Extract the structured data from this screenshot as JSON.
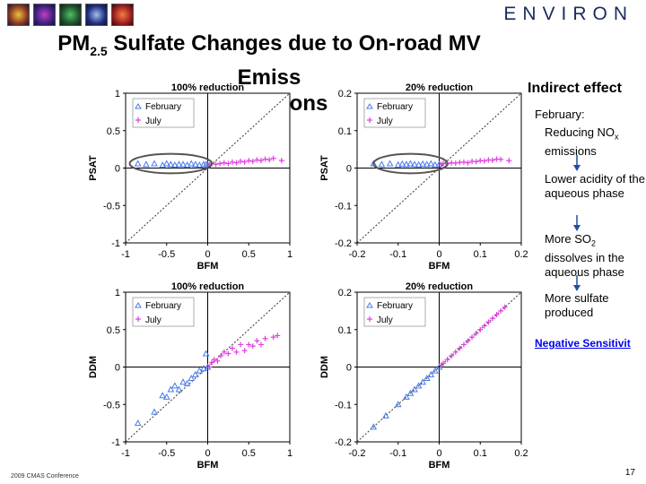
{
  "header": {
    "brand": "ENVIRON",
    "title_main": "PM",
    "title_sub": "2.5",
    "title_rest": " Sulfate Changes due to On-road MV Emiss",
    "title_line2": "Reductions"
  },
  "sidebar": {
    "heading": "Indirect effect",
    "month": "February:",
    "steps": [
      "Reducing NO",
      "x",
      " emissions",
      "Lower acidity of the aqueous phase",
      "More SO",
      "2",
      " dissolves in the aqueous phase",
      "More sulfate produced"
    ],
    "link": "Negative Sensitivit"
  },
  "footer": {
    "left": "2009 CMAS Conference",
    "page": "17"
  },
  "colors": {
    "february": "#4a7be8",
    "july": "#e040e0",
    "ellipse": "#555555"
  },
  "chart_data": [
    {
      "id": "psat-100",
      "type": "scatter",
      "title": "100% reduction",
      "xlabel": "BFM",
      "ylabel": "PSAT",
      "xlim": [
        -1,
        1
      ],
      "ylim": [
        -1,
        1
      ],
      "xticks": [
        -1,
        -0.5,
        0,
        0.5,
        1
      ],
      "yticks": [
        -1,
        -0.5,
        0,
        0.5,
        1
      ],
      "xticklabels": [
        "-1",
        "-0.5",
        "0",
        "0.5",
        "1"
      ],
      "yticklabels": [
        "-1",
        "-0.5",
        "0",
        "0.5",
        "1"
      ],
      "legend": [
        "February",
        "July"
      ],
      "series": [
        {
          "name": "February",
          "marker": "triangle",
          "x": [
            -0.85,
            -0.75,
            -0.65,
            -0.55,
            -0.5,
            -0.45,
            -0.4,
            -0.35,
            -0.3,
            -0.25,
            -0.2,
            -0.15,
            -0.1,
            -0.05,
            -0.02,
            0.0
          ],
          "y": [
            0.06,
            0.05,
            0.06,
            0.04,
            0.06,
            0.05,
            0.04,
            0.05,
            0.05,
            0.04,
            0.06,
            0.05,
            0.04,
            0.05,
            0.05,
            0.04
          ]
        },
        {
          "name": "July",
          "marker": "plus",
          "x": [
            0.02,
            0.05,
            0.1,
            0.15,
            0.2,
            0.25,
            0.3,
            0.35,
            0.4,
            0.45,
            0.5,
            0.55,
            0.6,
            0.65,
            0.7,
            0.75,
            0.8,
            0.9
          ],
          "y": [
            0.04,
            0.06,
            0.05,
            0.06,
            0.07,
            0.06,
            0.08,
            0.07,
            0.09,
            0.08,
            0.1,
            0.09,
            0.11,
            0.1,
            0.12,
            0.11,
            0.13,
            0.1
          ]
        }
      ],
      "ellipse": {
        "cx": -0.45,
        "cy": 0.06,
        "rx": 0.5,
        "ry": 0.13
      }
    },
    {
      "id": "psat-20",
      "type": "scatter",
      "title": "20% reduction",
      "xlabel": "BFM",
      "ylabel": "PSAT",
      "xlim": [
        -0.2,
        0.2
      ],
      "ylim": [
        -0.2,
        0.2
      ],
      "xticks": [
        -0.2,
        -0.1,
        0,
        0.1,
        0.2
      ],
      "yticks": [
        -0.2,
        -0.1,
        0,
        0.1,
        0.2
      ],
      "xticklabels": [
        "-0.2",
        "-0.1",
        "0",
        "0.1",
        "0.2"
      ],
      "yticklabels": [
        "-0.2",
        "-0.1",
        "0",
        "0.1",
        "0.2"
      ],
      "legend": [
        "February",
        "July"
      ],
      "series": [
        {
          "name": "February",
          "marker": "triangle",
          "x": [
            -0.16,
            -0.14,
            -0.12,
            -0.1,
            -0.09,
            -0.08,
            -0.07,
            -0.06,
            -0.05,
            -0.04,
            -0.03,
            -0.02,
            -0.01,
            0.0
          ],
          "y": [
            0.012,
            0.01,
            0.012,
            0.009,
            0.011,
            0.01,
            0.012,
            0.01,
            0.009,
            0.011,
            0.01,
            0.012,
            0.009,
            0.01
          ]
        },
        {
          "name": "July",
          "marker": "plus",
          "x": [
            0.005,
            0.01,
            0.02,
            0.03,
            0.04,
            0.05,
            0.06,
            0.07,
            0.08,
            0.09,
            0.1,
            0.11,
            0.12,
            0.13,
            0.14,
            0.15,
            0.17
          ],
          "y": [
            0.01,
            0.012,
            0.011,
            0.014,
            0.013,
            0.015,
            0.016,
            0.014,
            0.018,
            0.017,
            0.02,
            0.019,
            0.022,
            0.021,
            0.024,
            0.023,
            0.02
          ]
        }
      ],
      "ellipse": {
        "cx": -0.07,
        "cy": 0.012,
        "rx": 0.09,
        "ry": 0.026
      }
    },
    {
      "id": "ddm-100",
      "type": "scatter",
      "title": "100% reduction",
      "xlabel": "BFM",
      "ylabel": "DDM",
      "xlim": [
        -1,
        1
      ],
      "ylim": [
        -1,
        1
      ],
      "xticks": [
        -1,
        -0.5,
        0,
        0.5,
        1
      ],
      "yticks": [
        -1,
        -0.5,
        0,
        0.5,
        1
      ],
      "xticklabels": [
        "-1",
        "-0.5",
        "0",
        "0.5",
        "1"
      ],
      "yticklabels": [
        "-1",
        "-0.5",
        "0",
        "0.5",
        "1"
      ],
      "legend": [
        "February",
        "July"
      ],
      "series": [
        {
          "name": "February",
          "marker": "triangle",
          "x": [
            -0.85,
            -0.65,
            -0.55,
            -0.5,
            -0.45,
            -0.4,
            -0.35,
            -0.3,
            -0.25,
            -0.2,
            -0.15,
            -0.1,
            -0.05,
            0.0,
            -0.02
          ],
          "y": [
            -0.75,
            -0.6,
            -0.38,
            -0.4,
            -0.3,
            -0.25,
            -0.3,
            -0.2,
            -0.22,
            -0.15,
            -0.1,
            -0.05,
            -0.02,
            0.0,
            0.18
          ]
        },
        {
          "name": "July",
          "marker": "plus",
          "x": [
            0.02,
            0.05,
            0.08,
            0.12,
            0.16,
            0.2,
            0.25,
            0.3,
            0.35,
            0.4,
            0.45,
            0.5,
            0.55,
            0.6,
            0.65,
            0.7,
            0.8,
            0.85
          ],
          "y": [
            0.0,
            0.06,
            0.1,
            0.08,
            0.15,
            0.2,
            0.18,
            0.25,
            0.2,
            0.3,
            0.22,
            0.3,
            0.28,
            0.35,
            0.3,
            0.38,
            0.4,
            0.42
          ]
        }
      ]
    },
    {
      "id": "ddm-20",
      "type": "scatter",
      "title": "20% reduction",
      "xlabel": "BFM",
      "ylabel": "DDM",
      "xlim": [
        -0.2,
        0.2
      ],
      "ylim": [
        -0.2,
        0.2
      ],
      "xticks": [
        -0.2,
        -0.1,
        0,
        0.1,
        0.2
      ],
      "yticks": [
        -0.2,
        -0.1,
        0,
        0.1,
        0.2
      ],
      "xticklabels": [
        "-0.2",
        "-0.1",
        "0",
        "0.1",
        "0.2"
      ],
      "yticklabels": [
        "-0.2",
        "-0.1",
        "0",
        "0.1",
        "0.2"
      ],
      "legend": [
        "February",
        "July"
      ],
      "series": [
        {
          "name": "February",
          "marker": "triangle",
          "x": [
            -0.16,
            -0.13,
            -0.1,
            -0.08,
            -0.07,
            -0.06,
            -0.05,
            -0.04,
            -0.03,
            -0.02,
            -0.01,
            0.0
          ],
          "y": [
            -0.16,
            -0.13,
            -0.1,
            -0.08,
            -0.07,
            -0.06,
            -0.05,
            -0.04,
            -0.03,
            -0.02,
            -0.01,
            0.0
          ]
        },
        {
          "name": "July",
          "marker": "plus",
          "x": [
            0.005,
            0.01,
            0.02,
            0.03,
            0.04,
            0.05,
            0.06,
            0.07,
            0.08,
            0.09,
            0.1,
            0.11,
            0.12,
            0.13,
            0.14,
            0.15,
            0.16
          ],
          "y": [
            0.005,
            0.01,
            0.02,
            0.03,
            0.04,
            0.05,
            0.06,
            0.07,
            0.08,
            0.09,
            0.1,
            0.11,
            0.12,
            0.13,
            0.14,
            0.15,
            0.16
          ]
        }
      ]
    }
  ]
}
